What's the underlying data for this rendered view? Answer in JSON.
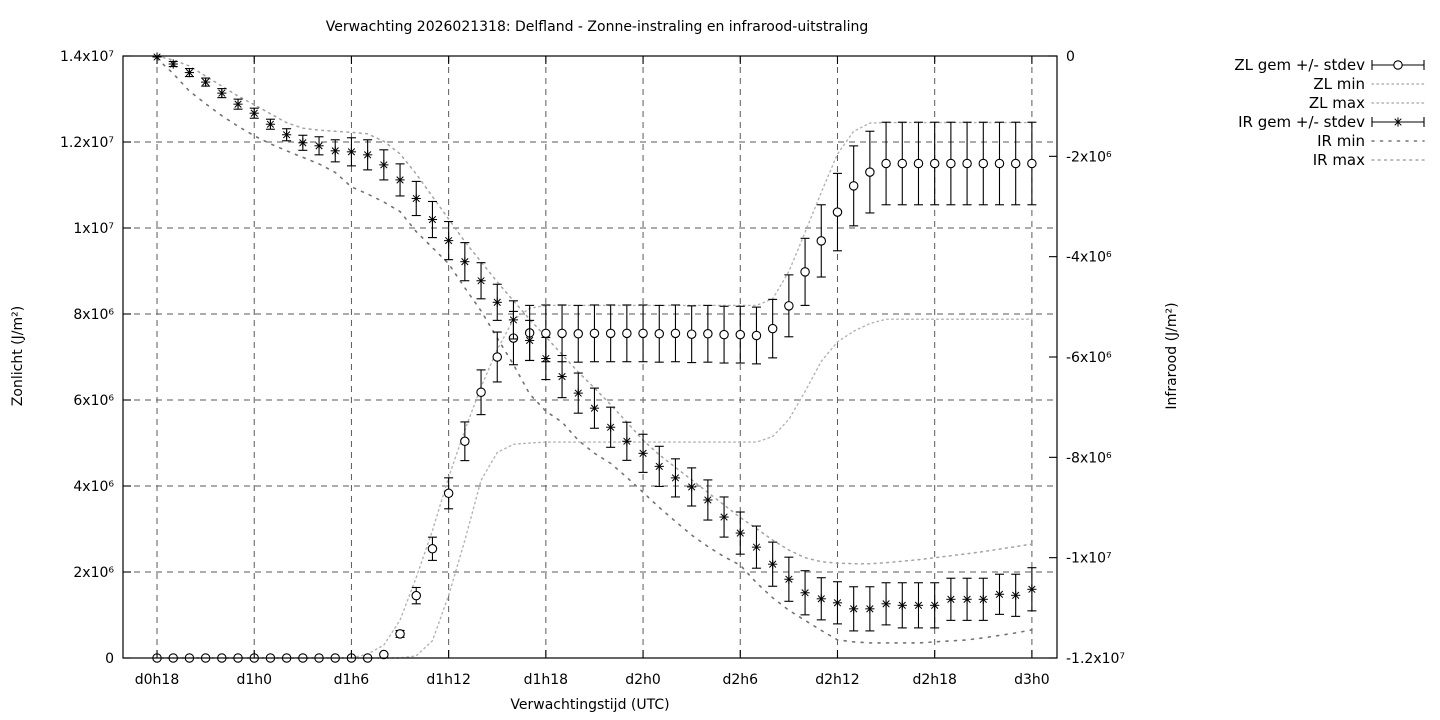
{
  "chart_data": {
    "type": "line",
    "subtype": "errorbar-series-with-min-max-envelopes",
    "title": "Verwachting 2026021318: Delfland - Zonne-instraling en infrarood-uitstraling",
    "xlabel": "Verwachtingstijd (UTC)",
    "ylabel_left": "Zonlicht (J/m²)",
    "ylabel_right": "Infrarood (J/m²)",
    "grid": true,
    "legend_position": "outside-top-right",
    "values_unit": "1e6 J/m²",
    "x_axis": {
      "range": [
        15.9,
        73.55
      ],
      "ticks": [
        {
          "v": 18,
          "label": "d0h18"
        },
        {
          "v": 24,
          "label": "d1h0"
        },
        {
          "v": 30,
          "label": "d1h6"
        },
        {
          "v": 36,
          "label": "d1h12"
        },
        {
          "v": 42,
          "label": "d1h18"
        },
        {
          "v": 48,
          "label": "d2h0"
        },
        {
          "v": 54,
          "label": "d2h6"
        },
        {
          "v": 60,
          "label": "d2h12"
        },
        {
          "v": 66,
          "label": "d2h18"
        },
        {
          "v": 72,
          "label": "d3h0"
        }
      ]
    },
    "y_left": {
      "range": [
        0,
        14
      ],
      "ticks": [
        {
          "v": 0,
          "label": "0"
        },
        {
          "v": 2,
          "label": "2x10⁶"
        },
        {
          "v": 4,
          "label": "4x10⁶"
        },
        {
          "v": 6,
          "label": "6x10⁶"
        },
        {
          "v": 8,
          "label": "8x10⁶"
        },
        {
          "v": 10,
          "label": "1x10⁷"
        },
        {
          "v": 12,
          "label": "1.2x10⁷"
        },
        {
          "v": 14,
          "label": "1.4x10⁷"
        }
      ]
    },
    "y_right": {
      "range": [
        -12,
        0
      ],
      "ticks": [
        {
          "v": 0,
          "label": "0"
        },
        {
          "v": -2,
          "label": "-2x10⁶"
        },
        {
          "v": -4,
          "label": "-4x10⁶"
        },
        {
          "v": -6,
          "label": "-6x10⁶"
        },
        {
          "v": -8,
          "label": "-8x10⁶"
        },
        {
          "v": -10,
          "label": "-1x10⁷"
        },
        {
          "v": -12,
          "label": "-1.2x10⁷"
        }
      ]
    },
    "hours": [
      18,
      19,
      20,
      21,
      22,
      23,
      24,
      25,
      26,
      27,
      28,
      29,
      30,
      31,
      32,
      33,
      34,
      35,
      36,
      37,
      38,
      39,
      40,
      41,
      42,
      43,
      44,
      45,
      46,
      47,
      48,
      49,
      50,
      51,
      52,
      53,
      54,
      55,
      56,
      57,
      58,
      59,
      60,
      61,
      62,
      63,
      64,
      65,
      66,
      67,
      68,
      69,
      70,
      71,
      72
    ],
    "series": {
      "zl_gem": {
        "axis": "left",
        "y": [
          0,
          0,
          0,
          0,
          0,
          0,
          0,
          0,
          0,
          0,
          0,
          0,
          0,
          0,
          0.08,
          0.56,
          1.45,
          2.54,
          3.83,
          5.04,
          6.18,
          7.0,
          7.44,
          7.56,
          7.55,
          7.55,
          7.54,
          7.55,
          7.55,
          7.55,
          7.55,
          7.54,
          7.55,
          7.53,
          7.54,
          7.52,
          7.52,
          7.5,
          7.66,
          8.19,
          8.98,
          9.7,
          10.37,
          10.98,
          11.3,
          11.5,
          11.5,
          11.5,
          11.5,
          11.5,
          11.5,
          11.5,
          11.5,
          11.5,
          11.5
        ],
        "stdev": [
          0,
          0,
          0,
          0,
          0,
          0,
          0,
          0,
          0,
          0,
          0,
          0,
          0,
          0,
          0.03,
          0.08,
          0.19,
          0.27,
          0.36,
          0.45,
          0.52,
          0.58,
          0.62,
          0.64,
          0.66,
          0.66,
          0.66,
          0.66,
          0.66,
          0.66,
          0.66,
          0.66,
          0.66,
          0.66,
          0.66,
          0.66,
          0.66,
          0.66,
          0.68,
          0.72,
          0.78,
          0.84,
          0.9,
          0.93,
          0.95,
          0.96,
          0.96,
          0.96,
          0.96,
          0.96,
          0.96,
          0.96,
          0.96,
          0.96,
          0.96
        ]
      },
      "zl_min": {
        "axis": "left",
        "y": [
          0,
          0,
          0,
          0,
          0,
          0,
          0,
          0,
          0,
          0,
          0,
          0,
          0,
          0,
          0,
          0,
          0.05,
          0.4,
          1.45,
          2.73,
          4.13,
          4.78,
          4.97,
          5.0,
          5.02,
          5.02,
          5.02,
          5.02,
          5.02,
          5.02,
          5.02,
          5.02,
          5.02,
          5.02,
          5.02,
          5.02,
          5.02,
          5.02,
          5.15,
          5.55,
          6.2,
          6.9,
          7.35,
          7.6,
          7.78,
          7.88,
          7.88,
          7.88,
          7.88,
          7.88,
          7.88,
          7.88,
          7.88,
          7.88,
          7.88
        ]
      },
      "zl_max": {
        "axis": "left",
        "y": [
          0,
          0,
          0,
          0,
          0,
          0,
          0,
          0,
          0,
          0,
          0,
          0,
          0,
          0.09,
          0.3,
          0.88,
          1.87,
          2.96,
          4.2,
          5.3,
          6.3,
          7.17,
          7.87,
          8.13,
          8.2,
          8.2,
          8.2,
          8.2,
          8.2,
          8.2,
          8.2,
          8.2,
          8.2,
          8.2,
          8.2,
          8.2,
          8.2,
          8.2,
          8.35,
          8.99,
          9.9,
          10.83,
          11.72,
          12.25,
          12.44,
          12.45,
          12.45,
          12.45,
          12.45,
          12.45,
          12.45,
          12.45,
          12.45,
          12.45,
          12.45
        ]
      },
      "ir_gem": {
        "axis": "right",
        "y": [
          -0.02,
          -0.16,
          -0.33,
          -0.52,
          -0.74,
          -0.96,
          -1.14,
          -1.36,
          -1.57,
          -1.73,
          -1.79,
          -1.89,
          -1.91,
          -1.97,
          -2.17,
          -2.47,
          -2.84,
          -3.26,
          -3.68,
          -4.1,
          -4.48,
          -4.91,
          -5.26,
          -5.67,
          -6.03,
          -6.39,
          -6.72,
          -7.02,
          -7.4,
          -7.68,
          -7.92,
          -8.18,
          -8.41,
          -8.59,
          -8.85,
          -9.19,
          -9.51,
          -9.79,
          -10.13,
          -10.43,
          -10.7,
          -10.82,
          -10.9,
          -11.02,
          -11.02,
          -10.92,
          -10.95,
          -10.95,
          -10.95,
          -10.83,
          -10.83,
          -10.83,
          -10.73,
          -10.75,
          -10.63
        ],
        "stdev": [
          0.03,
          0.05,
          0.08,
          0.08,
          0.09,
          0.1,
          0.1,
          0.1,
          0.12,
          0.15,
          0.18,
          0.22,
          0.28,
          0.3,
          0.3,
          0.32,
          0.34,
          0.36,
          0.38,
          0.38,
          0.36,
          0.36,
          0.38,
          0.4,
          0.42,
          0.42,
          0.4,
          0.4,
          0.4,
          0.38,
          0.38,
          0.4,
          0.38,
          0.38,
          0.4,
          0.4,
          0.42,
          0.42,
          0.44,
          0.44,
          0.44,
          0.42,
          0.42,
          0.44,
          0.44,
          0.42,
          0.45,
          0.45,
          0.45,
          0.42,
          0.42,
          0.42,
          0.4,
          0.42,
          0.43
        ]
      },
      "ir_min": {
        "axis": "right",
        "y": [
          -0.05,
          -0.35,
          -0.7,
          -0.95,
          -1.19,
          -1.4,
          -1.59,
          -1.75,
          -1.89,
          -2.02,
          -2.15,
          -2.32,
          -2.61,
          -2.75,
          -2.91,
          -3.1,
          -3.5,
          -3.82,
          -4.14,
          -4.62,
          -5.08,
          -5.62,
          -6.15,
          -6.74,
          -7.08,
          -7.3,
          -7.66,
          -7.92,
          -8.12,
          -8.4,
          -8.7,
          -9.0,
          -9.28,
          -9.55,
          -9.78,
          -9.98,
          -10.15,
          -10.5,
          -10.8,
          -11.05,
          -11.25,
          -11.45,
          -11.64,
          -11.68,
          -11.7,
          -11.7,
          -11.7,
          -11.7,
          -11.68,
          -11.66,
          -11.64,
          -11.6,
          -11.55,
          -11.5,
          -11.44
        ]
      },
      "ir_max": {
        "axis": "right",
        "y": [
          0.0,
          -0.08,
          -0.2,
          -0.4,
          -0.6,
          -0.8,
          -0.97,
          -1.15,
          -1.33,
          -1.44,
          -1.48,
          -1.5,
          -1.52,
          -1.55,
          -1.7,
          -1.95,
          -2.35,
          -2.8,
          -3.25,
          -3.7,
          -4.1,
          -4.5,
          -4.88,
          -5.25,
          -5.6,
          -5.95,
          -6.3,
          -6.62,
          -6.95,
          -7.3,
          -7.66,
          -7.95,
          -8.2,
          -8.45,
          -8.7,
          -8.95,
          -9.2,
          -9.42,
          -9.65,
          -9.85,
          -10.0,
          -10.08,
          -10.11,
          -10.12,
          -10.12,
          -10.1,
          -10.07,
          -10.04,
          -10.0,
          -9.96,
          -9.92,
          -9.88,
          -9.83,
          -9.78,
          -9.73
        ]
      }
    },
    "styles": {
      "zl_gem": {
        "color": "#000000",
        "marker": "circle",
        "type": "errorbar"
      },
      "zl_min": {
        "color": "#b3b3b3",
        "dash": "1.5,3.5",
        "width": 1.4,
        "type": "dotted"
      },
      "zl_max": {
        "color": "#b3b3b3",
        "dash": "1.5,3.5",
        "width": 1.4,
        "type": "dotted"
      },
      "ir_gem": {
        "color": "#000000",
        "marker": "star",
        "type": "errorbar"
      },
      "ir_min": {
        "color": "#737373",
        "dash": "2,6.5",
        "width": 1.6,
        "type": "dotted"
      },
      "ir_max": {
        "color": "#a3a3a3",
        "dash": "1.8,4.5",
        "width": 1.5,
        "type": "dotted"
      }
    },
    "legend": [
      {
        "label": "ZL gem +/- stdev",
        "series": "zl_gem"
      },
      {
        "label": "ZL min",
        "series": "zl_min"
      },
      {
        "label": "ZL max",
        "series": "zl_max"
      },
      {
        "label": "IR gem +/- stdev",
        "series": "ir_gem"
      },
      {
        "label": "IR min",
        "series": "ir_min"
      },
      {
        "label": "IR max",
        "series": "ir_max"
      }
    ],
    "colors": {
      "foreground": "#000000",
      "background": "#ffffff",
      "grid": "#5a5a5a"
    }
  }
}
